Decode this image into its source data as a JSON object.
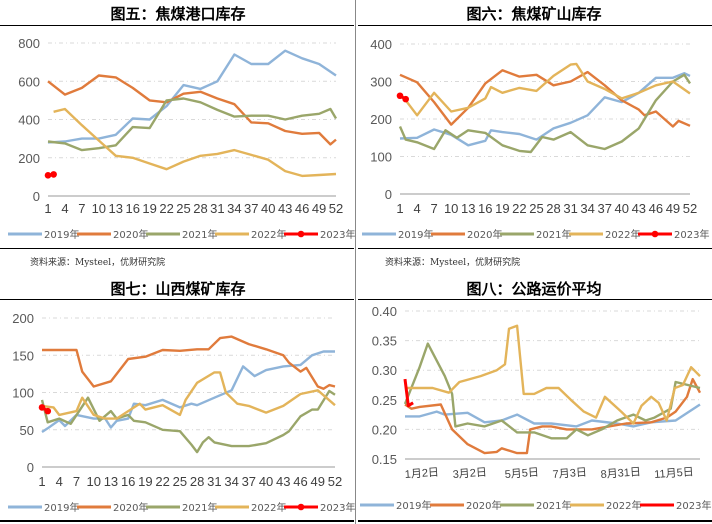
{
  "legend_colors": {
    "2019年": "#8fb4d9",
    "2020年": "#e07b3c",
    "2021年": "#9aa66a",
    "2022年": "#e3b45a",
    "2023年": "#ff0000"
  },
  "source_text": "资料来源：Mysteel，优财研究院",
  "chart_data": [
    {
      "type": "line",
      "title": "图五：焦煤港口库存",
      "ylim": [
        0,
        800
      ],
      "yticks": [
        0,
        200,
        400,
        600,
        800
      ],
      "xticks": [
        1,
        4,
        7,
        10,
        13,
        16,
        19,
        22,
        25,
        28,
        31,
        34,
        37,
        40,
        43,
        46,
        49,
        52
      ],
      "grid": true,
      "legend": "bottom",
      "series": [
        {
          "name": "2019年",
          "x": [
            1,
            4,
            7,
            10,
            13,
            16,
            19,
            22,
            25,
            28,
            31,
            34,
            37,
            40,
            43,
            46,
            49,
            52
          ],
          "y": [
            280,
            285,
            300,
            300,
            320,
            405,
            400,
            470,
            580,
            560,
            600,
            740,
            690,
            690,
            760,
            720,
            690,
            630
          ]
        },
        {
          "name": "2020年",
          "x": [
            1,
            4,
            7,
            10,
            13,
            16,
            19,
            22,
            25,
            28,
            31,
            34,
            37,
            40,
            43,
            46,
            49,
            51,
            52
          ],
          "y": [
            600,
            530,
            565,
            630,
            620,
            565,
            500,
            490,
            535,
            545,
            510,
            480,
            385,
            380,
            340,
            325,
            330,
            270,
            295
          ]
        },
        {
          "name": "2021年",
          "x": [
            1,
            4,
            7,
            10,
            13,
            16,
            19,
            22,
            25,
            28,
            31,
            34,
            37,
            40,
            43,
            46,
            49,
            51,
            52
          ],
          "y": [
            285,
            275,
            240,
            250,
            265,
            360,
            355,
            500,
            510,
            490,
            450,
            415,
            420,
            420,
            400,
            420,
            430,
            455,
            405
          ]
        },
        {
          "name": "2022年",
          "x": [
            2,
            4,
            7,
            10,
            13,
            16,
            19,
            22,
            25,
            28,
            31,
            34,
            37,
            40,
            43,
            46,
            49,
            52
          ],
          "y": [
            440,
            455,
            370,
            290,
            210,
            200,
            170,
            140,
            180,
            210,
            220,
            240,
            215,
            190,
            130,
            105,
            110,
            115
          ]
        },
        {
          "name": "2023年",
          "x": [
            1,
            2
          ],
          "y": [
            108,
            113
          ]
        }
      ]
    },
    {
      "type": "line",
      "title": "图六：焦煤矿山库存",
      "ylim": [
        0,
        400
      ],
      "yticks": [
        0,
        100,
        200,
        300,
        400
      ],
      "xticks": [
        1,
        4,
        7,
        10,
        13,
        16,
        19,
        22,
        25,
        28,
        31,
        34,
        37,
        40,
        43,
        46,
        49,
        52
      ],
      "grid": true,
      "legend": "bottom",
      "series": [
        {
          "name": "2019年",
          "x": [
            1,
            4,
            7,
            10,
            13,
            16,
            17,
            19,
            22,
            25,
            28,
            31,
            34,
            37,
            40,
            43,
            46,
            49,
            51,
            52
          ],
          "y": [
            148,
            150,
            172,
            158,
            130,
            142,
            170,
            165,
            160,
            145,
            175,
            190,
            210,
            258,
            245,
            270,
            310,
            310,
            322,
            315
          ]
        },
        {
          "name": "2020年",
          "x": [
            1,
            4,
            7,
            10,
            13,
            16,
            19,
            22,
            25,
            28,
            31,
            34,
            37,
            40,
            43,
            44,
            46,
            49,
            50,
            52
          ],
          "y": [
            318,
            298,
            245,
            185,
            230,
            295,
            330,
            313,
            318,
            290,
            300,
            325,
            290,
            250,
            225,
            210,
            220,
            180,
            195,
            182
          ]
        },
        {
          "name": "2021年",
          "x": [
            1,
            2,
            4,
            7,
            9,
            11,
            13,
            16,
            19,
            22,
            24,
            26,
            28,
            31,
            34,
            37,
            40,
            43,
            46,
            49,
            51,
            52
          ],
          "y": [
            180,
            145,
            138,
            120,
            170,
            150,
            170,
            163,
            130,
            115,
            112,
            152,
            145,
            165,
            130,
            120,
            140,
            175,
            250,
            300,
            318,
            295
          ]
        },
        {
          "name": "2022年",
          "x": [
            2,
            4,
            7,
            10,
            13,
            16,
            17,
            19,
            22,
            25,
            28,
            31,
            32,
            34,
            37,
            40,
            43,
            46,
            49,
            52
          ],
          "y": [
            250,
            210,
            270,
            220,
            230,
            255,
            285,
            270,
            283,
            275,
            315,
            345,
            347,
            300,
            280,
            255,
            270,
            290,
            300,
            268
          ]
        },
        {
          "name": "2023年",
          "x": [
            1,
            2
          ],
          "y": [
            262,
            253
          ]
        }
      ]
    },
    {
      "type": "line",
      "title": "图七：山西煤矿库存",
      "ylim": [
        0,
        200
      ],
      "yticks": [
        0,
        50,
        100,
        150,
        200
      ],
      "xticks": [
        1,
        4,
        7,
        10,
        13,
        16,
        19,
        22,
        25,
        28,
        31,
        34,
        37,
        40,
        43,
        46,
        49,
        52
      ],
      "grid": true,
      "legend": "bottom",
      "series": [
        {
          "name": "2019年",
          "x": [
            1,
            2,
            4,
            5,
            7,
            10,
            12,
            13,
            14,
            16,
            17,
            19,
            22,
            25,
            27,
            28,
            31,
            34,
            36,
            38,
            40,
            43,
            46,
            48,
            50,
            52
          ],
          "y": [
            47,
            52,
            63,
            55,
            70,
            65,
            65,
            53,
            62,
            65,
            85,
            83,
            90,
            80,
            85,
            83,
            93,
            103,
            135,
            122,
            130,
            135,
            137,
            150,
            155,
            155
          ]
        },
        {
          "name": "2020年",
          "x": [
            1,
            7,
            8,
            10,
            13,
            16,
            19,
            22,
            25,
            28,
            30,
            32,
            34,
            37,
            40,
            43,
            44,
            46,
            47,
            49,
            50,
            51,
            52
          ],
          "y": [
            157,
            157,
            128,
            108,
            115,
            145,
            148,
            157,
            156,
            158,
            158,
            173,
            175,
            165,
            158,
            150,
            140,
            128,
            133,
            108,
            105,
            110,
            108
          ]
        },
        {
          "name": "2021年",
          "x": [
            1,
            2,
            4,
            6,
            9,
            11,
            13,
            14,
            16,
            17,
            19,
            22,
            25,
            27,
            28,
            29,
            30,
            31,
            34,
            37,
            40,
            43,
            44,
            46,
            48,
            49,
            51,
            52
          ],
          "y": [
            90,
            60,
            65,
            58,
            93,
            62,
            75,
            65,
            70,
            62,
            60,
            50,
            48,
            30,
            20,
            33,
            40,
            33,
            28,
            28,
            32,
            43,
            48,
            68,
            77,
            77,
            102,
            97
          ]
        },
        {
          "name": "2022年",
          "x": [
            1,
            3,
            4,
            7,
            8,
            10,
            12,
            14,
            16,
            18,
            19,
            22,
            25,
            26,
            28,
            31,
            32,
            33,
            35,
            37,
            40,
            43,
            46,
            49,
            52
          ],
          "y": [
            82,
            80,
            70,
            75,
            93,
            70,
            65,
            65,
            75,
            85,
            77,
            83,
            70,
            90,
            113,
            127,
            127,
            100,
            85,
            82,
            73,
            82,
            98,
            103,
            83
          ]
        },
        {
          "name": "2023年",
          "x": [
            1,
            2
          ],
          "y": [
            80,
            75
          ]
        }
      ]
    },
    {
      "type": "line",
      "title": "图八：公路运价平均",
      "ylim": [
        0.15,
        0.4
      ],
      "yticks": [
        0.15,
        0.2,
        0.25,
        0.3,
        0.35,
        0.4
      ],
      "xticks": [
        "01-02",
        "03-02",
        "05-05",
        "07-03",
        "08-31",
        "11-05"
      ],
      "xtick_labels": [
        "1月2日",
        "3月2日",
        "5月5日",
        "7月3日",
        "8月31日",
        "11月5日"
      ],
      "grid": true,
      "legend": "bottom",
      "series": [
        {
          "name": "2019年",
          "x": [
            "01-02",
            "01-20",
            "02-10",
            "02-20",
            "03-20",
            "04-10",
            "05-01",
            "05-20",
            "06-10",
            "07-01",
            "08-01",
            "08-20",
            "09-20",
            "10-10",
            "11-01",
            "12-01",
            "12-31"
          ],
          "y": [
            0.222,
            0.222,
            0.23,
            0.225,
            0.228,
            0.212,
            0.215,
            0.225,
            0.21,
            0.21,
            0.205,
            0.215,
            0.21,
            0.205,
            0.212,
            0.215,
            0.242
          ]
        },
        {
          "name": "2020年",
          "x": [
            "01-02",
            "01-10",
            "01-20",
            "02-15",
            "03-01",
            "03-20",
            "04-10",
            "04-25",
            "05-01",
            "05-20",
            "06-01",
            "06-05",
            "06-20",
            "07-01",
            "07-20",
            "08-01",
            "08-20",
            "09-10",
            "10-01",
            "11-01",
            "11-20",
            "12-01",
            "12-15",
            "12-22",
            "12-31"
          ],
          "y": [
            0.242,
            0.235,
            0.238,
            0.242,
            0.2,
            0.175,
            0.16,
            0.162,
            0.168,
            0.16,
            0.16,
            0.2,
            0.205,
            0.205,
            0.2,
            0.2,
            0.2,
            0.205,
            0.21,
            0.212,
            0.22,
            0.23,
            0.255,
            0.285,
            0.262
          ]
        },
        {
          "name": "2021年",
          "x": [
            "01-02",
            "01-20",
            "01-30",
            "02-20",
            "03-01",
            "03-05",
            "03-20",
            "04-10",
            "05-01",
            "05-20",
            "06-10",
            "07-01",
            "07-20",
            "08-01",
            "08-15",
            "09-01",
            "09-20",
            "10-10",
            "10-25",
            "11-05",
            "11-25",
            "12-01",
            "12-31"
          ],
          "y": [
            0.243,
            0.305,
            0.345,
            0.29,
            0.26,
            0.205,
            0.21,
            0.205,
            0.215,
            0.195,
            0.195,
            0.185,
            0.185,
            0.2,
            0.19,
            0.2,
            0.215,
            0.225,
            0.215,
            0.22,
            0.235,
            0.28,
            0.27
          ]
        },
        {
          "name": "2022年",
          "x": [
            "01-02",
            "02-05",
            "02-25",
            "03-10",
            "04-05",
            "04-25",
            "05-05",
            "05-10",
            "05-20",
            "05-28",
            "06-10",
            "06-25",
            "07-10",
            "07-25",
            "08-10",
            "08-25",
            "09-05",
            "09-25",
            "10-10",
            "10-20",
            "11-01",
            "11-10",
            "11-20",
            "11-30",
            "12-10",
            "12-20",
            "12-31"
          ],
          "y": [
            0.27,
            0.27,
            0.262,
            0.28,
            0.29,
            0.3,
            0.31,
            0.37,
            0.375,
            0.26,
            0.26,
            0.27,
            0.27,
            0.25,
            0.23,
            0.22,
            0.255,
            0.23,
            0.21,
            0.24,
            0.255,
            0.245,
            0.215,
            0.27,
            0.275,
            0.305,
            0.29
          ]
        },
        {
          "name": "2023年",
          "x": [
            "01-02",
            "01-06",
            "01-12"
          ],
          "y": [
            0.285,
            0.24,
            0.245
          ]
        }
      ]
    }
  ]
}
